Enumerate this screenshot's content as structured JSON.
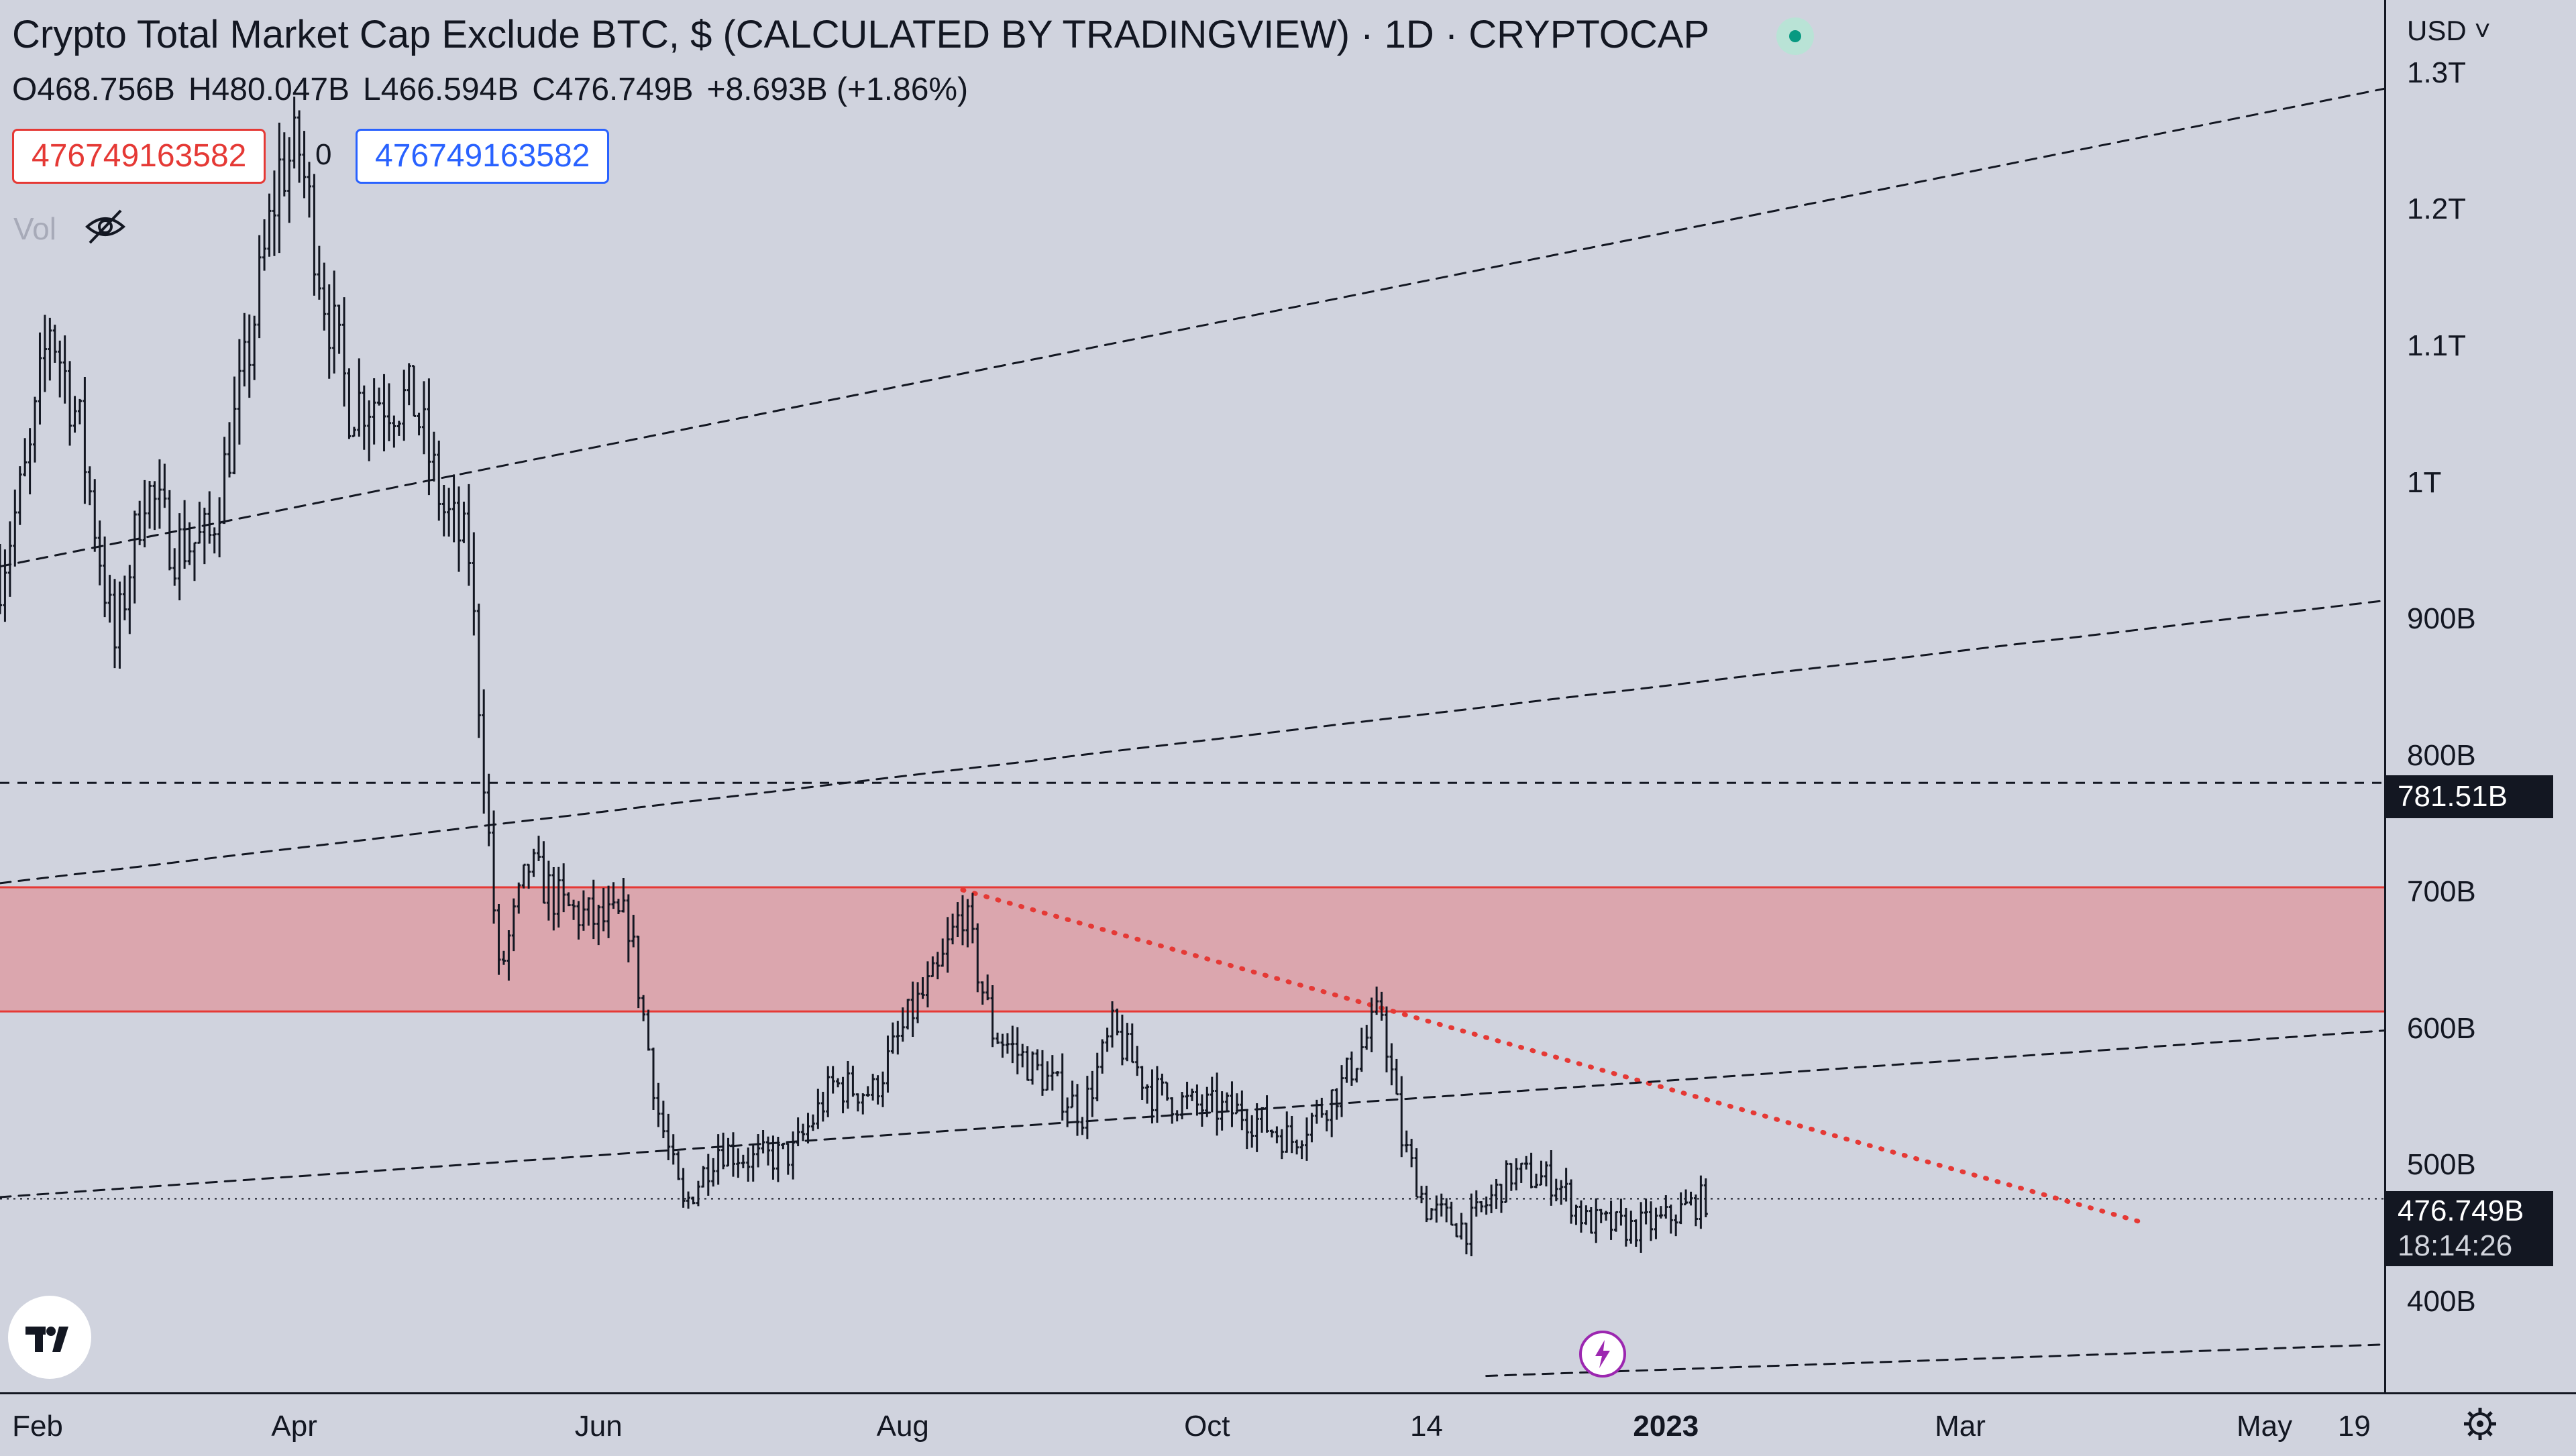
{
  "header": {
    "title": "Crypto Total Market Cap Exclude BTC, $ (CALCULATED BY TRADINGVIEW) · 1D · CRYPTOCAP",
    "ohlc": {
      "open": "O468.756B",
      "high": "H480.047B",
      "low": "L466.594B",
      "close": "C476.749B",
      "change": "+8.693B (+1.86%)"
    },
    "sell_value": "476749163582",
    "buy_value": "476749163582",
    "spread": "0",
    "volume_label": "Vol"
  },
  "axis": {
    "currency": "USD",
    "y_labels": [
      "1.3T",
      "1.2T",
      "1.1T",
      "1T",
      "900B",
      "800B",
      "700B",
      "600B",
      "500B",
      "400B"
    ],
    "x_labels": [
      "Feb",
      "Apr",
      "Jun",
      "Aug",
      "Oct",
      "14",
      "2023",
      "Mar",
      "May",
      "19"
    ],
    "level_tag": "781.51B",
    "last_price_tag": "476.749B",
    "countdown": "18:14:26"
  },
  "colors": {
    "background": "#d0d3de",
    "resistance_zone": "#dba6ae",
    "zone_border": "#e53935",
    "downtrend_line": "#e53935",
    "price_tag": "#131722"
  },
  "icons": [
    "tradingview-logo-icon",
    "lightning-icon",
    "settings-gear-icon",
    "eye-hidden-icon",
    "chevron-down-icon"
  ],
  "chart_data": {
    "type": "line",
    "scale": "linear",
    "x_range": [
      "2022-02-01",
      "2023-05-25"
    ],
    "y_range_billions": [
      335,
      1355
    ],
    "series": [
      {
        "values_billions": [
          [
            "2022-02-01",
            935
          ],
          [
            "2022-02-07",
            1020
          ],
          [
            "2022-02-11",
            1120
          ],
          [
            "2022-02-17",
            1040
          ],
          [
            "2022-02-24",
            880
          ],
          [
            "2022-03-02",
            1000
          ],
          [
            "2022-03-08",
            955
          ],
          [
            "2022-03-15",
            960
          ],
          [
            "2022-03-22",
            1080
          ],
          [
            "2022-03-29",
            1230
          ],
          [
            "2022-04-02",
            1245
          ],
          [
            "2022-04-07",
            1140
          ],
          [
            "2022-04-12",
            1060
          ],
          [
            "2022-04-18",
            1065
          ],
          [
            "2022-04-25",
            1060
          ],
          [
            "2022-05-01",
            980
          ],
          [
            "2022-05-06",
            950
          ],
          [
            "2022-05-09",
            790
          ],
          [
            "2022-05-12",
            640
          ],
          [
            "2022-05-18",
            720
          ],
          [
            "2022-05-25",
            690
          ],
          [
            "2022-06-01",
            680
          ],
          [
            "2022-06-07",
            680
          ],
          [
            "2022-06-13",
            540
          ],
          [
            "2022-06-18",
            470
          ],
          [
            "2022-06-25",
            515
          ],
          [
            "2022-07-02",
            505
          ],
          [
            "2022-07-10",
            510
          ],
          [
            "2022-07-18",
            560
          ],
          [
            "2022-07-26",
            555
          ],
          [
            "2022-08-03",
            615
          ],
          [
            "2022-08-08",
            640
          ],
          [
            "2022-08-13",
            690
          ],
          [
            "2022-08-19",
            600
          ],
          [
            "2022-08-28",
            570
          ],
          [
            "2022-09-06",
            540
          ],
          [
            "2022-09-12",
            600
          ],
          [
            "2022-09-20",
            555
          ],
          [
            "2022-09-28",
            545
          ],
          [
            "2022-10-08",
            540
          ],
          [
            "2022-10-18",
            520
          ],
          [
            "2022-10-28",
            560
          ],
          [
            "2022-11-05",
            615
          ],
          [
            "2022-11-09",
            520
          ],
          [
            "2022-11-14",
            470
          ],
          [
            "2022-11-22",
            455
          ],
          [
            "2022-12-01",
            495
          ],
          [
            "2022-12-10",
            490
          ],
          [
            "2022-12-16",
            460
          ],
          [
            "2022-12-25",
            455
          ],
          [
            "2022-12-31",
            460
          ],
          [
            "2023-01-05",
            470
          ],
          [
            "2023-01-09",
            476.749
          ]
        ]
      }
    ],
    "reference_lines": {
      "horizontal_level": 781.51,
      "last_price": 476.749
    },
    "zones": [
      {
        "from": 614,
        "to": 705
      }
    ],
    "trendlines_billions": [
      {
        "style": "red-dotted",
        "points": [
          [
            "2022-08-13",
            703
          ],
          [
            "2023-04-06",
            460
          ]
        ]
      },
      {
        "style": "dashed",
        "points": [
          [
            "2022-02-01",
            940
          ],
          [
            "2023-05-25",
            1290
          ]
        ]
      },
      {
        "style": "dashed",
        "points": [
          [
            "2022-02-01",
            708
          ],
          [
            "2023-05-25",
            915
          ]
        ]
      },
      {
        "style": "dashed",
        "points": [
          [
            "2022-02-01",
            478
          ],
          [
            "2023-05-25",
            600
          ]
        ]
      },
      {
        "style": "dashed",
        "points": [
          [
            "2022-11-26",
            347
          ],
          [
            "2023-05-25",
            370
          ]
        ]
      }
    ],
    "grid": false,
    "legend": "top-left"
  }
}
